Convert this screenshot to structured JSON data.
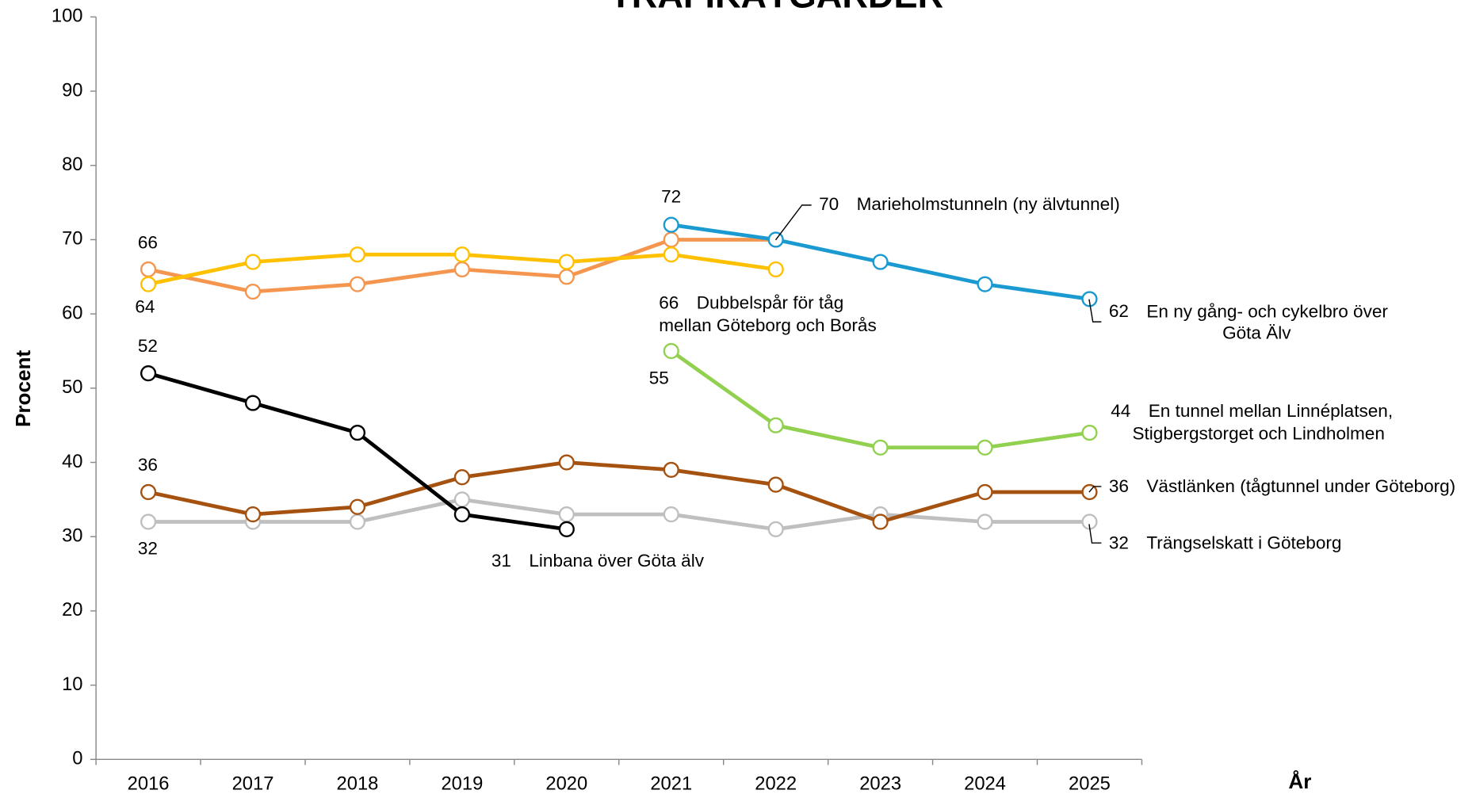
{
  "chart_data": {
    "type": "line",
    "title": "TRAFIKÅTGÄRDER",
    "y_label": "Procent",
    "x_label": "År",
    "categories": [
      "2016",
      "2017",
      "2018",
      "2019",
      "2020",
      "2021",
      "2022",
      "2023",
      "2024",
      "2025"
    ],
    "ylim": [
      0,
      100
    ],
    "yticks": [
      0,
      10,
      20,
      30,
      40,
      50,
      60,
      70,
      80,
      90,
      100
    ],
    "series": [
      {
        "name": "Linbana över Göta älv",
        "color": "#000000",
        "values": [
          52,
          48,
          44,
          33,
          31,
          null,
          null,
          null,
          null,
          null
        ]
      },
      {
        "name": "Marieholmstunneln (ny älvtunnel)",
        "color": "#f4964f",
        "values": [
          66,
          63,
          64,
          66,
          65,
          70,
          70,
          null,
          null,
          null
        ]
      },
      {
        "name": "Dubbelspår för tåg mellan Göteborg och Borås",
        "color": "#ffc000",
        "values": [
          64,
          67,
          68,
          68,
          67,
          68,
          66,
          null,
          null,
          null
        ]
      },
      {
        "name": "En ny gång- och cykelbro över Göta Älv",
        "color": "#1a9ad0",
        "values": [
          null,
          null,
          null,
          null,
          null,
          72,
          70,
          67,
          64,
          62
        ]
      },
      {
        "name": "En tunnel mellan Linnéplatsen, Stigbergstorget och Lindholmen",
        "color": "#92d050",
        "values": [
          null,
          null,
          null,
          null,
          null,
          55,
          45,
          42,
          42,
          44
        ]
      },
      {
        "name": "Västlänken (tågtunnel under Göteborg)",
        "color": "#a5510f",
        "values": [
          36,
          33,
          34,
          38,
          40,
          39,
          37,
          32,
          36,
          36
        ]
      },
      {
        "name": "Trängselskatt i Göteborg",
        "color": "#bfbfbf",
        "values": [
          32,
          32,
          32,
          35,
          33,
          33,
          31,
          33,
          32,
          32
        ]
      }
    ]
  }
}
